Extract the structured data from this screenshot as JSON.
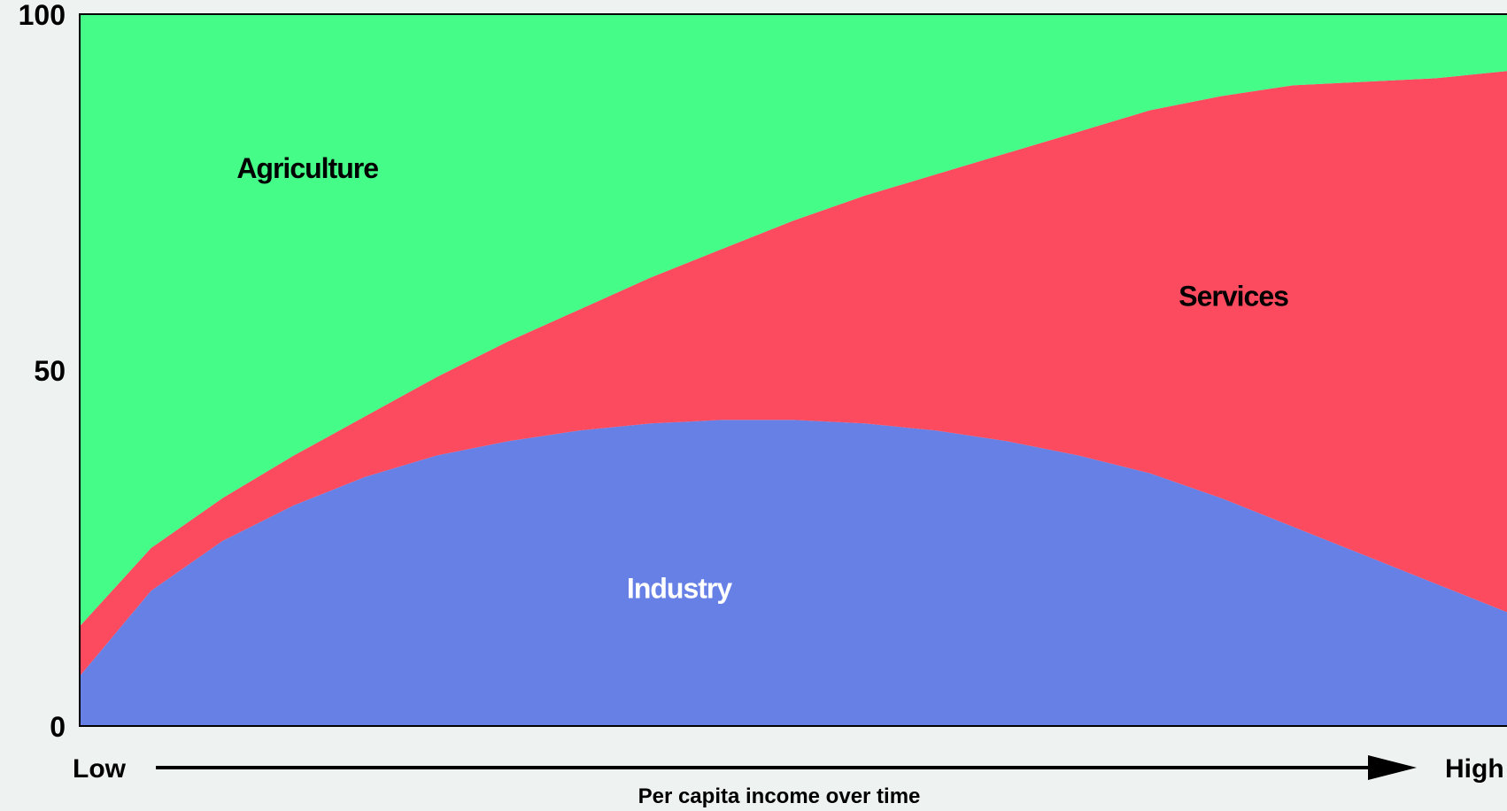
{
  "chart_data": {
    "type": "area",
    "stacked": true,
    "x": [
      0,
      0.05,
      0.1,
      0.15,
      0.2,
      0.25,
      0.3,
      0.35,
      0.4,
      0.45,
      0.5,
      0.55,
      0.6,
      0.65,
      0.7,
      0.75,
      0.8,
      0.85,
      0.9,
      0.95,
      1.0
    ],
    "series": [
      {
        "name": "Industry",
        "color": "#6780e6",
        "values": [
          7,
          19,
          26,
          31,
          35,
          38,
          40,
          41.5,
          42.5,
          43,
          43,
          42.5,
          41.5,
          40,
          38,
          35.5,
          32,
          28,
          24,
          20,
          16
        ]
      },
      {
        "name": "Services",
        "color": "#fc4a5f",
        "values": [
          7,
          6,
          6,
          7,
          8.5,
          11,
          14,
          17,
          20.5,
          24,
          28,
          32,
          36,
          40.5,
          45.5,
          51,
          56.5,
          62,
          66.5,
          71,
          76
        ]
      },
      {
        "name": "Agriculture",
        "color": "#44fc87",
        "values": [
          86,
          75,
          68,
          62,
          56.5,
          51,
          46,
          41.5,
          37,
          33,
          29,
          25.5,
          22.5,
          19.5,
          16.5,
          13.5,
          11.5,
          10,
          9.5,
          9,
          8
        ]
      }
    ],
    "ylim": [
      0,
      100
    ],
    "yticks": [
      {
        "value": 0,
        "label": "0"
      },
      {
        "value": 50,
        "label": "50"
      },
      {
        "value": 100,
        "label": "100"
      }
    ],
    "xlabel": "Per capita income over time",
    "x_start_label": "Low",
    "x_end_label": "High",
    "grid": false,
    "legend": "none"
  }
}
